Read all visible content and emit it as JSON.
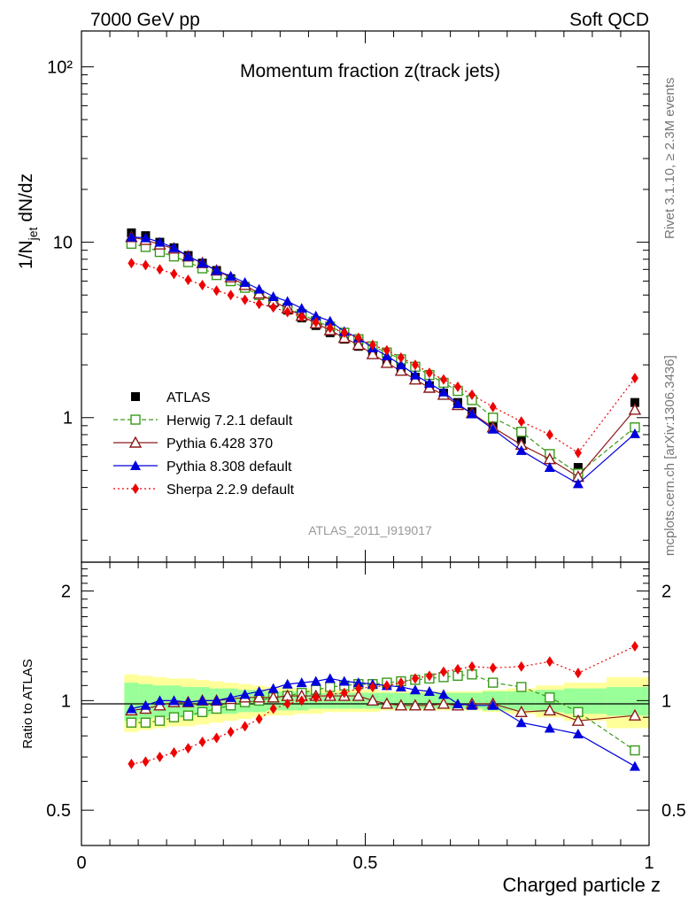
{
  "header": {
    "left": "7000 GeV pp",
    "right": "Soft QCD"
  },
  "side": {
    "rivet": "Rivet 3.1.10, ≥ 2.3M events",
    "mcplots": "mcplots.cern.ch [arXiv:1306.3436]"
  },
  "chart_data": {
    "type": "line",
    "title": "Momentum fraction z(track jets)",
    "analysis_label": "ATLAS_2011_I919017",
    "xlabel": "Charged particle z",
    "ylabel_main": "1/N_jet dN/dz",
    "ylabel_ratio": "Ratio to ATLAS",
    "xlim": [
      0,
      1
    ],
    "ylim_main": [
      0.15,
      160
    ],
    "ylim_ratio": [
      0.4,
      2.4
    ],
    "yscale": "log",
    "x_ticks": [
      "0",
      "0.5",
      "1"
    ],
    "main_y_ticks": [
      "1",
      "10",
      "10²"
    ],
    "ratio_y_ticks": [
      "0.5",
      "1",
      "2"
    ],
    "x": [
      0.088,
      0.113,
      0.138,
      0.163,
      0.188,
      0.213,
      0.238,
      0.263,
      0.288,
      0.313,
      0.338,
      0.363,
      0.388,
      0.413,
      0.438,
      0.463,
      0.488,
      0.513,
      0.538,
      0.563,
      0.588,
      0.613,
      0.638,
      0.663,
      0.688,
      0.725,
      0.775,
      0.825,
      0.875,
      0.975
    ],
    "series": [
      {
        "name": "ATLAS",
        "color": "#000000",
        "marker": "square-filled",
        "dash": "none",
        "values": [
          11.3,
          10.9,
          10.0,
          9.3,
          8.4,
          7.6,
          6.9,
          6.2,
          5.6,
          5.0,
          4.5,
          4.1,
          3.7,
          3.35,
          3.05,
          2.8,
          2.55,
          2.3,
          2.1,
          1.9,
          1.7,
          1.52,
          1.38,
          1.22,
          1.08,
          0.9,
          0.75,
          0.62,
          0.52,
          1.22
        ]
      },
      {
        "name": "Herwig 7.2.1 default",
        "color": "#3a9a1a",
        "marker": "square-open",
        "dash": "dashed",
        "values": [
          9.8,
          9.4,
          8.8,
          8.3,
          7.7,
          7.1,
          6.5,
          6.0,
          5.5,
          5.0,
          4.6,
          4.2,
          3.9,
          3.55,
          3.3,
          3.05,
          2.8,
          2.55,
          2.35,
          2.15,
          1.95,
          1.75,
          1.58,
          1.42,
          1.26,
          1.0,
          0.83,
          0.62,
          0.48,
          0.88
        ]
      },
      {
        "name": "Pythia 6.428 370",
        "color": "#8b1a1a",
        "marker": "triangle-open",
        "dash": "none",
        "values": [
          10.7,
          10.3,
          9.7,
          9.2,
          8.3,
          7.6,
          6.9,
          6.3,
          5.7,
          5.1,
          4.6,
          4.2,
          3.8,
          3.45,
          3.15,
          2.85,
          2.6,
          2.3,
          2.05,
          1.85,
          1.65,
          1.48,
          1.35,
          1.18,
          1.06,
          0.88,
          0.7,
          0.58,
          0.46,
          1.11
        ]
      },
      {
        "name": "Pythia 8.308 default",
        "color": "#0000dd",
        "marker": "triangle-filled",
        "dash": "none",
        "values": [
          10.7,
          10.6,
          10.0,
          9.3,
          8.3,
          7.6,
          6.9,
          6.4,
          5.9,
          5.4,
          4.9,
          4.6,
          4.2,
          3.8,
          3.55,
          3.1,
          2.85,
          2.5,
          2.25,
          2.0,
          1.75,
          1.57,
          1.4,
          1.2,
          1.05,
          0.86,
          0.65,
          0.52,
          0.42,
          0.81
        ]
      },
      {
        "name": "Sherpa 2.2.9 default",
        "color": "#ee0000",
        "marker": "diamond-filled",
        "dash": "dotted",
        "values": [
          7.6,
          7.4,
          7.0,
          6.6,
          6.1,
          5.7,
          5.3,
          5.0,
          4.7,
          4.45,
          4.25,
          4.0,
          3.75,
          3.5,
          3.25,
          3.05,
          2.85,
          2.6,
          2.42,
          2.2,
          2.0,
          1.8,
          1.65,
          1.5,
          1.35,
          1.15,
          0.95,
          0.8,
          0.63,
          1.68
        ]
      }
    ],
    "ratio": {
      "band_inner": [
        0.12,
        0.11,
        0.1,
        0.1,
        0.09,
        0.09,
        0.08,
        0.08,
        0.07,
        0.07,
        0.06,
        0.06,
        0.06,
        0.05,
        0.05,
        0.05,
        0.05,
        0.05,
        0.05,
        0.05,
        0.05,
        0.05,
        0.05,
        0.05,
        0.05,
        0.06,
        0.06,
        0.07,
        0.08,
        0.09
      ],
      "band_outer": [
        0.18,
        0.17,
        0.16,
        0.15,
        0.15,
        0.14,
        0.13,
        0.12,
        0.11,
        0.1,
        0.09,
        0.09,
        0.08,
        0.08,
        0.07,
        0.07,
        0.07,
        0.07,
        0.06,
        0.06,
        0.06,
        0.06,
        0.06,
        0.06,
        0.06,
        0.07,
        0.08,
        0.1,
        0.12,
        0.16
      ],
      "series": [
        {
          "name": "Herwig 7.2.1 default",
          "values": [
            0.87,
            0.87,
            0.88,
            0.9,
            0.91,
            0.93,
            0.95,
            0.97,
            0.99,
            1.0,
            1.02,
            1.03,
            1.05,
            1.07,
            1.09,
            1.1,
            1.11,
            1.11,
            1.12,
            1.13,
            1.14,
            1.15,
            1.16,
            1.17,
            1.18,
            1.12,
            1.09,
            1.02,
            0.93,
            0.73
          ]
        },
        {
          "name": "Pythia 6.428 370",
          "values": [
            0.94,
            0.95,
            0.97,
            0.99,
            0.99,
            1.0,
            1.0,
            1.01,
            1.02,
            1.02,
            1.02,
            1.03,
            1.03,
            1.03,
            1.03,
            1.03,
            1.03,
            1.0,
            0.98,
            0.97,
            0.97,
            0.97,
            0.98,
            0.97,
            0.98,
            0.98,
            0.93,
            0.94,
            0.88,
            0.91
          ]
        },
        {
          "name": "Pythia 8.308 default",
          "values": [
            0.95,
            0.97,
            1.0,
            1.0,
            0.99,
            1.0,
            1.0,
            1.02,
            1.04,
            1.06,
            1.08,
            1.11,
            1.12,
            1.13,
            1.15,
            1.13,
            1.12,
            1.11,
            1.1,
            1.09,
            1.07,
            1.06,
            1.04,
            0.98,
            0.97,
            0.97,
            0.87,
            0.84,
            0.81,
            0.66
          ]
        },
        {
          "name": "Sherpa 2.2.9 default",
          "values": [
            0.67,
            0.68,
            0.7,
            0.72,
            0.74,
            0.77,
            0.79,
            0.82,
            0.85,
            0.89,
            0.95,
            0.98,
            1.0,
            1.02,
            1.04,
            1.05,
            1.08,
            1.09,
            1.1,
            1.12,
            1.15,
            1.17,
            1.2,
            1.22,
            1.24,
            1.23,
            1.24,
            1.28,
            1.19,
            1.41
          ]
        }
      ]
    }
  }
}
